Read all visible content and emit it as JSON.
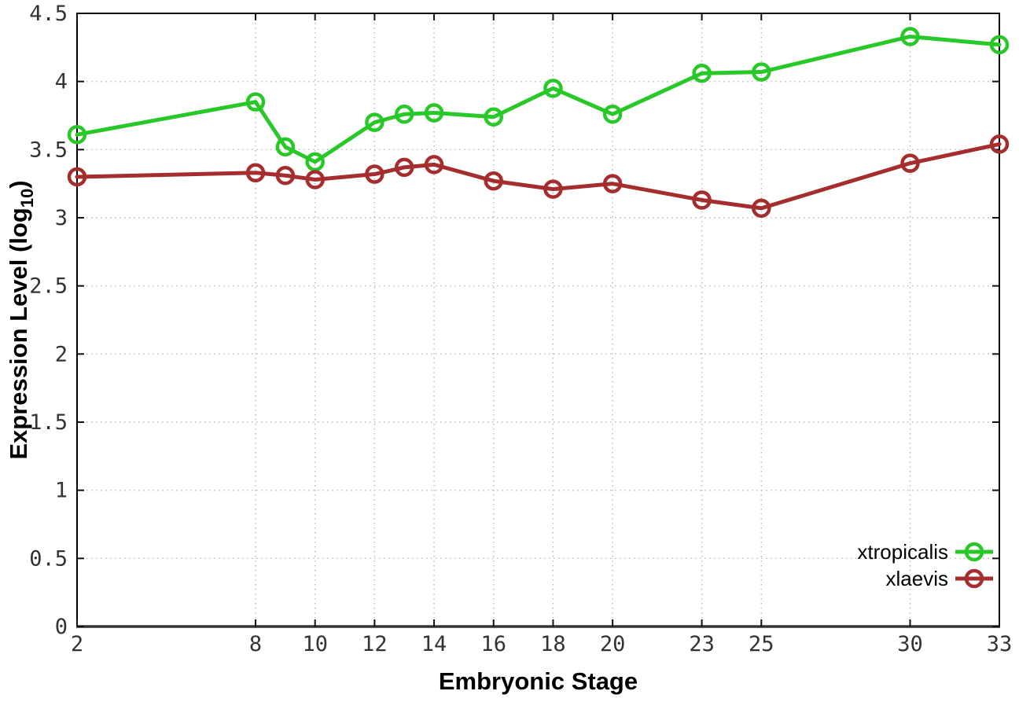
{
  "figure": {
    "title": "",
    "xlabel": "Embryonic Stage",
    "ylabel_main": "Expression Level (log",
    "ylabel_sub": "10",
    "ylabel_end": ")"
  },
  "chart_data": {
    "type": "line",
    "title": "",
    "xlabel": "Embryonic Stage",
    "ylabel": "Expression Level (log10)",
    "xlim": [
      2,
      33
    ],
    "ylim": [
      0,
      4.5
    ],
    "x_ticks": [
      2,
      8,
      10,
      12,
      14,
      16,
      18,
      20,
      23,
      25,
      30,
      33
    ],
    "y_ticks": [
      0,
      0.5,
      1,
      1.5,
      2,
      2.5,
      3,
      3.5,
      4,
      4.5
    ],
    "grid": true,
    "grid_style": "dotted",
    "legend_position": "inside bottom-right",
    "x": [
      2,
      8,
      9,
      10,
      12,
      13,
      14,
      16,
      18,
      20,
      23,
      25,
      30,
      33
    ],
    "series": [
      {
        "name": "xtropicalis",
        "color": "#28c828",
        "marker": "open-circle",
        "values": [
          3.61,
          3.85,
          3.52,
          3.41,
          3.7,
          3.76,
          3.77,
          3.74,
          3.95,
          3.76,
          4.06,
          4.07,
          4.33,
          4.27
        ]
      },
      {
        "name": "xlaevis",
        "color": "#a52d2d",
        "marker": "open-circle",
        "values": [
          3.3,
          3.33,
          3.31,
          3.28,
          3.32,
          3.37,
          3.39,
          3.27,
          3.21,
          3.25,
          3.13,
          3.07,
          3.4,
          3.54
        ]
      }
    ],
    "colors": {
      "background": "#ffffff",
      "grid": "#b8b8b8",
      "border": "#000000",
      "bottom_axis": "#333333",
      "tick": "#111111",
      "tick_label": "#333333",
      "axis_label": "#000000",
      "legend_text": "#000000"
    }
  }
}
